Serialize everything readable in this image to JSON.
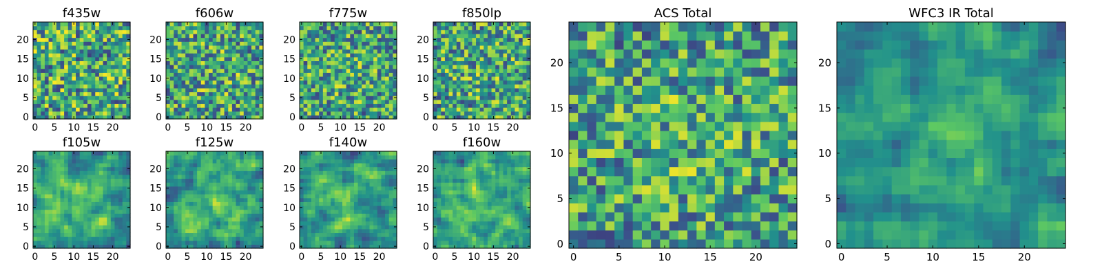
{
  "figure": {
    "background": "#ffffff",
    "colormap": "viridis",
    "colormap_stops": [
      "#440154",
      "#3b528b",
      "#21918c",
      "#5ec962",
      "#fde725"
    ],
    "colormap_range_used": [
      0.2,
      1.0
    ]
  },
  "chart_data": [
    {
      "type": "heatmap",
      "title": "f435w",
      "grid": [
        25,
        25
      ],
      "xlim": [
        0,
        24
      ],
      "ylim": [
        0,
        24
      ],
      "xticks": [
        "0",
        "5",
        "10",
        "15",
        "20"
      ],
      "yticks": [
        "0",
        "5",
        "10",
        "15",
        "20"
      ],
      "seed": 11,
      "smooth": 0,
      "center_bias": 0.0
    },
    {
      "type": "heatmap",
      "title": "f606w",
      "grid": [
        25,
        25
      ],
      "xlim": [
        0,
        24
      ],
      "ylim": [
        0,
        24
      ],
      "xticks": [
        "0",
        "5",
        "10",
        "15",
        "20"
      ],
      "yticks": [
        "0",
        "5",
        "10",
        "15",
        "20"
      ],
      "seed": 23,
      "smooth": 0,
      "center_bias": 0.05
    },
    {
      "type": "heatmap",
      "title": "f775w",
      "grid": [
        25,
        25
      ],
      "xlim": [
        0,
        24
      ],
      "ylim": [
        0,
        24
      ],
      "xticks": [
        "0",
        "5",
        "10",
        "15",
        "20"
      ],
      "yticks": [
        "0",
        "5",
        "10",
        "15",
        "20"
      ],
      "seed": 37,
      "smooth": 0,
      "center_bias": 0.08
    },
    {
      "type": "heatmap",
      "title": "f850lp",
      "grid": [
        25,
        25
      ],
      "xlim": [
        0,
        24
      ],
      "ylim": [
        0,
        24
      ],
      "xticks": [
        "0",
        "5",
        "10",
        "15",
        "20"
      ],
      "yticks": [
        "0",
        "5",
        "10",
        "15",
        "20"
      ],
      "seed": 41,
      "smooth": 0,
      "center_bias": 0.06
    },
    {
      "type": "heatmap",
      "title": "f105w",
      "grid": [
        25,
        25
      ],
      "xlim": [
        0,
        24
      ],
      "ylim": [
        0,
        24
      ],
      "xticks": [
        "0",
        "5",
        "10",
        "15",
        "20"
      ],
      "yticks": [
        "0",
        "5",
        "10",
        "15",
        "20"
      ],
      "seed": 53,
      "smooth": 1,
      "center_bias": 0.18
    },
    {
      "type": "heatmap",
      "title": "f125w",
      "grid": [
        25,
        25
      ],
      "xlim": [
        0,
        24
      ],
      "ylim": [
        0,
        24
      ],
      "xticks": [
        "0",
        "5",
        "10",
        "15",
        "20"
      ],
      "yticks": [
        "0",
        "5",
        "10",
        "15",
        "20"
      ],
      "seed": 67,
      "smooth": 1,
      "center_bias": 0.18
    },
    {
      "type": "heatmap",
      "title": "f140w",
      "grid": [
        25,
        25
      ],
      "xlim": [
        0,
        24
      ],
      "ylim": [
        0,
        24
      ],
      "xticks": [
        "0",
        "5",
        "10",
        "15",
        "20"
      ],
      "yticks": [
        "0",
        "5",
        "10",
        "15",
        "20"
      ],
      "seed": 71,
      "smooth": 1,
      "center_bias": 0.2
    },
    {
      "type": "heatmap",
      "title": "f160w",
      "grid": [
        25,
        25
      ],
      "xlim": [
        0,
        24
      ],
      "ylim": [
        0,
        24
      ],
      "xticks": [
        "0",
        "5",
        "10",
        "15",
        "20"
      ],
      "yticks": [
        "0",
        "5",
        "10",
        "15",
        "20"
      ],
      "seed": 89,
      "smooth": 1,
      "center_bias": 0.18
    },
    {
      "type": "heatmap",
      "title": "ACS Total",
      "grid": [
        25,
        25
      ],
      "xlim": [
        0,
        24
      ],
      "ylim": [
        0,
        24
      ],
      "xticks": [
        "0",
        "5",
        "10",
        "15",
        "20"
      ],
      "yticks": [
        "0",
        "5",
        "10",
        "15",
        "20"
      ],
      "seed": 97,
      "smooth": 0,
      "center_bias": 0.1
    },
    {
      "type": "heatmap",
      "title": "WFC3 IR Total",
      "grid": [
        25,
        25
      ],
      "xlim": [
        0,
        24
      ],
      "ylim": [
        0,
        24
      ],
      "xticks": [
        "0",
        "5",
        "10",
        "15",
        "20"
      ],
      "yticks": [
        "0",
        "5",
        "10",
        "15",
        "20"
      ],
      "seed": 103,
      "smooth": 1,
      "center_bias": 0.3
    }
  ]
}
